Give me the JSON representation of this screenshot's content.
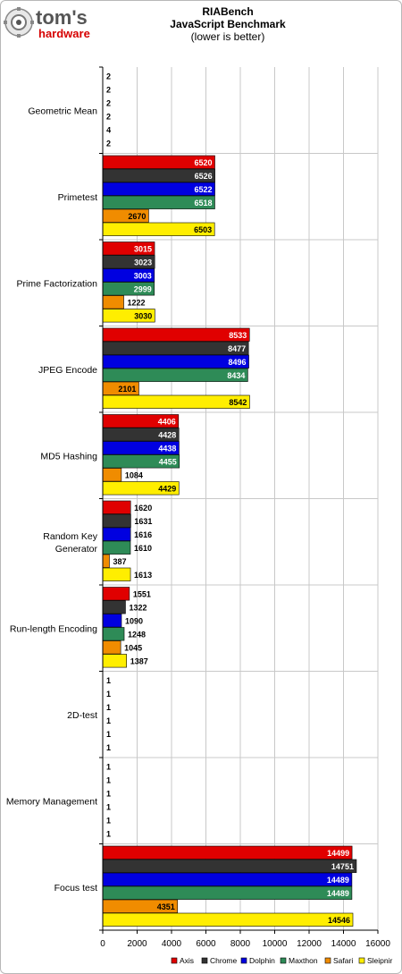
{
  "logo": {
    "main": "tom's",
    "sub": "hardware"
  },
  "chart_data": {
    "type": "bar",
    "orientation": "horizontal",
    "title": "RIABench",
    "subtitle": "JavaScript Benchmark",
    "note": "(lower is better)",
    "xlim": [
      0,
      16000
    ],
    "x_ticks": [
      "0",
      "2000",
      "4000",
      "6000",
      "8000",
      "10000",
      "12000",
      "14000",
      "16000"
    ],
    "grid": true,
    "legend_position": "bottom-right",
    "categories": [
      [
        "Geometric Mean"
      ],
      [
        "Primetest"
      ],
      [
        "Prime Factorization"
      ],
      [
        "JPEG Encode"
      ],
      [
        "MD5 Hashing"
      ],
      [
        "Random Key",
        "Generator"
      ],
      [
        "Run-length Encoding"
      ],
      [
        "2D-test"
      ],
      [
        "Memory Management"
      ],
      [
        "Focus test"
      ]
    ],
    "series": [
      {
        "name": "Axis",
        "color": "#e00000",
        "values": [
          2,
          6520,
          3015,
          8533,
          4406,
          1620,
          1551,
          1,
          1,
          14499
        ]
      },
      {
        "name": "Chrome",
        "color": "#333333",
        "values": [
          2,
          6526,
          3023,
          8477,
          4428,
          1631,
          1322,
          1,
          1,
          14751
        ]
      },
      {
        "name": "Dolphin",
        "color": "#0000e0",
        "values": [
          2,
          6522,
          3003,
          8496,
          4438,
          1616,
          1090,
          1,
          1,
          14489
        ]
      },
      {
        "name": "Maxthon",
        "color": "#2e8b57",
        "values": [
          2,
          6518,
          2999,
          8434,
          4455,
          1610,
          1248,
          1,
          1,
          14489
        ]
      },
      {
        "name": "Safari",
        "color": "#f08c00",
        "values": [
          4,
          2670,
          1222,
          2101,
          1084,
          387,
          1045,
          1,
          1,
          4351
        ]
      },
      {
        "name": "Sleipnir",
        "color": "#ffee00",
        "values": [
          2,
          6503,
          3030,
          8542,
          4429,
          1613,
          1387,
          1,
          1,
          14546
        ]
      }
    ]
  }
}
